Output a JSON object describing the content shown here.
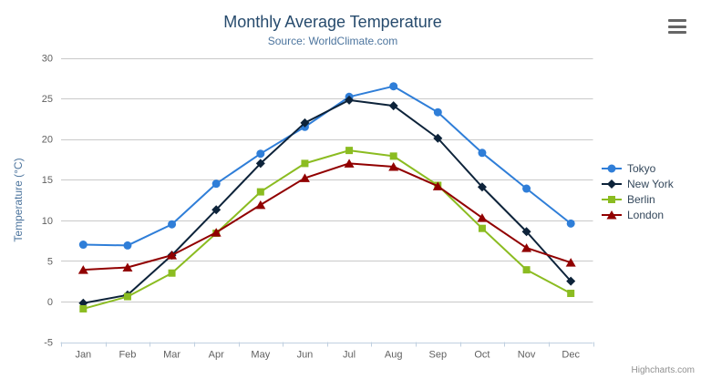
{
  "header": {
    "title": "Monthly Average Temperature",
    "subtitle": "Source: WorldClimate.com"
  },
  "export_menu": {
    "icon": "hamburger-menu-icon"
  },
  "credits": {
    "label": "Highcharts.com"
  },
  "chart_data": {
    "type": "line",
    "title": "Monthly Average Temperature",
    "subtitle": "Source: WorldClimate.com",
    "categories": [
      "Jan",
      "Feb",
      "Mar",
      "Apr",
      "May",
      "Jun",
      "Jul",
      "Aug",
      "Sep",
      "Oct",
      "Nov",
      "Dec"
    ],
    "series": [
      {
        "name": "Tokyo",
        "marker": "circle",
        "color": "#2f7ed8",
        "values": [
          7.0,
          6.9,
          9.5,
          14.5,
          18.2,
          21.5,
          25.2,
          26.5,
          23.3,
          18.3,
          13.9,
          9.6
        ]
      },
      {
        "name": "New York",
        "marker": "diamond",
        "color": "#0d233a",
        "values": [
          -0.2,
          0.8,
          5.7,
          11.3,
          17.0,
          22.0,
          24.8,
          24.1,
          20.1,
          14.1,
          8.6,
          2.5
        ]
      },
      {
        "name": "Berlin",
        "marker": "square",
        "color": "#8bbc21",
        "values": [
          -0.9,
          0.6,
          3.5,
          8.4,
          13.5,
          17.0,
          18.6,
          17.9,
          14.3,
          9.0,
          3.9,
          1.0
        ]
      },
      {
        "name": "London",
        "marker": "triangle",
        "color": "#910000",
        "values": [
          3.9,
          4.2,
          5.7,
          8.5,
          11.9,
          15.2,
          17.0,
          16.6,
          14.2,
          10.3,
          6.6,
          4.8
        ]
      }
    ],
    "xlabel": "",
    "ylabel": "Temperature (°C)",
    "ylim": [
      -5,
      30
    ],
    "ytick_interval": 5,
    "grid": true,
    "legend_position": "right",
    "axis_line_color": "#c0d0e0",
    "grid_line_color": "#c9c9c9"
  }
}
